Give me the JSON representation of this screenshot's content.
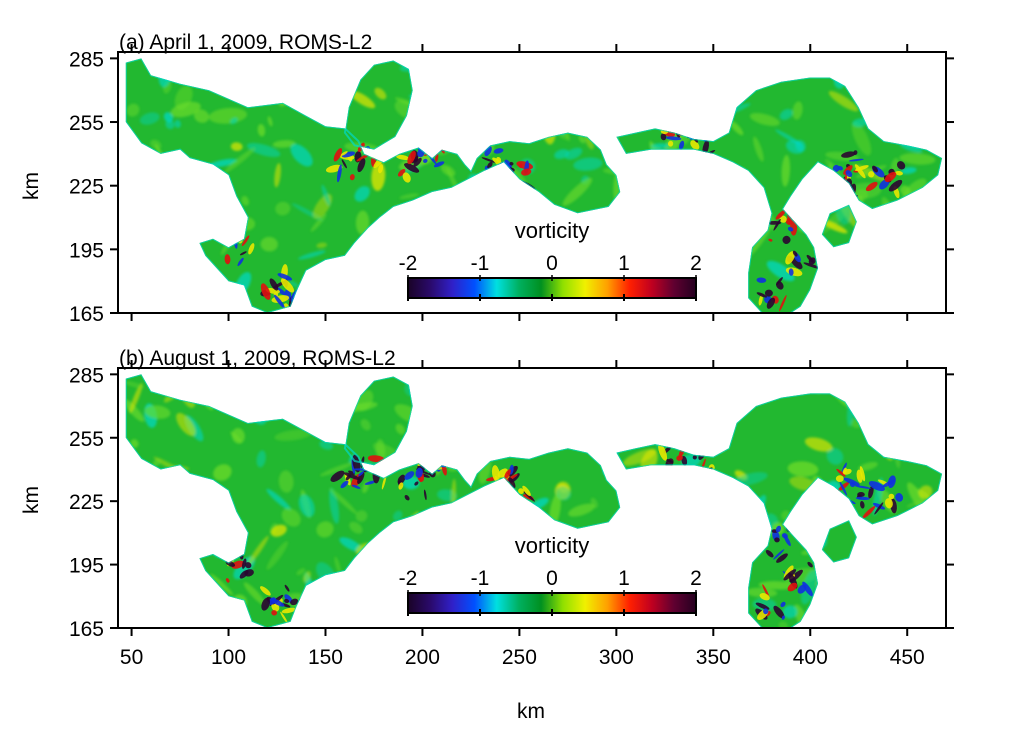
{
  "chart_data": [
    {
      "type": "heatmap",
      "title": "(a) April 1, 2009, ROMS-L2",
      "xlabel": "",
      "ylabel": "km",
      "xlim": [
        43,
        470
      ],
      "ylim": [
        165,
        288
      ],
      "xticks": [
        50,
        100,
        150,
        200,
        250,
        300,
        350,
        400,
        450
      ],
      "xtick_labels_visible": false,
      "yticks": [
        165,
        195,
        225,
        255,
        285
      ],
      "ytick_labels": [
        "165",
        "195",
        "225",
        "255",
        "285"
      ],
      "colorbar": {
        "label": "vorticity",
        "range": [
          -2,
          2
        ],
        "ticks": [
          -2,
          -1,
          0,
          1,
          2
        ],
        "tick_labels": [
          "-2",
          "-1",
          "0",
          "1",
          "2"
        ],
        "colormap": [
          "#1a0326",
          "#2a0a6a",
          "#3020c8",
          "#0050ff",
          "#00e0e0",
          "#00b060",
          "#009020",
          "#90e000",
          "#f0f000",
          "#ffa000",
          "#ff2000",
          "#c00020",
          "#600030",
          "#240020"
        ],
        "placement": "lower-center"
      },
      "field": "vorticity",
      "grid": false
    },
    {
      "type": "heatmap",
      "title": "(b) August 1, 2009, ROMS-L2",
      "xlabel": "km",
      "ylabel": "km",
      "xlim": [
        43,
        470
      ],
      "ylim": [
        165,
        288
      ],
      "xticks": [
        50,
        100,
        150,
        200,
        250,
        300,
        350,
        400,
        450
      ],
      "xtick_labels": [
        "50",
        "100",
        "150",
        "200",
        "250",
        "300",
        "350",
        "400",
        "450"
      ],
      "yticks": [
        165,
        195,
        225,
        255,
        285
      ],
      "ytick_labels": [
        "165",
        "195",
        "225",
        "255",
        "285"
      ],
      "colorbar": {
        "label": "vorticity",
        "range": [
          -2,
          2
        ],
        "ticks": [
          -2,
          -1,
          0,
          1,
          2
        ],
        "tick_labels": [
          "-2",
          "-1",
          "0",
          "1",
          "2"
        ],
        "colormap": [
          "#1a0326",
          "#2a0a6a",
          "#3020c8",
          "#0050ff",
          "#00e0e0",
          "#00b060",
          "#009020",
          "#90e000",
          "#f0f000",
          "#ffa000",
          "#ff2000",
          "#c00020",
          "#600030",
          "#240020"
        ],
        "placement": "lower-center"
      },
      "field": "vorticity",
      "grid": false
    }
  ],
  "colors": {
    "water_base": "#22b830",
    "water_light": "#6edc2a",
    "cyan": "#00d8c8",
    "blue": "#1030e0",
    "dark": "#2a0630",
    "red": "#e01010",
    "yellow": "#e8e800",
    "land": "#ffffff"
  }
}
